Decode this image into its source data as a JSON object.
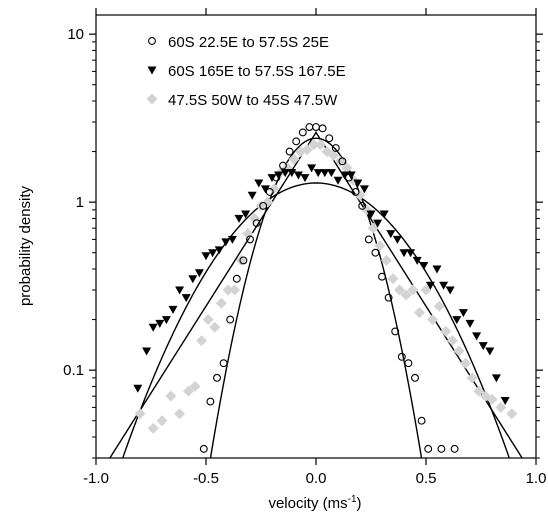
{
  "chart_data": {
    "type": "scatter",
    "title": "",
    "xlabel": "velocity (ms",
    "xlabel_sup": "-1",
    "xlabel_close": ")",
    "ylabel": "probability density",
    "xlim": [
      -1.0,
      1.0
    ],
    "ylim": [
      0.03,
      13
    ],
    "yscale": "log",
    "grid": false,
    "legend_position": "top-left",
    "xticks": [
      {
        "value": -1.0,
        "label": "-1.0"
      },
      {
        "value": -0.5,
        "label": "-0.5"
      },
      {
        "value": 0.0,
        "label": "0.0"
      },
      {
        "value": 0.5,
        "label": "0.5"
      },
      {
        "value": 1.0,
        "label": "1.0"
      }
    ],
    "yticks": [
      {
        "value": 0.1,
        "label": "0.1"
      },
      {
        "value": 1,
        "label": "1"
      },
      {
        "value": 10,
        "label": "10"
      }
    ],
    "series": [
      {
        "name": "60S 22.5E to 57.5S 25E",
        "marker": "circle",
        "color": "#000000",
        "x": [
          -0.51,
          -0.48,
          -0.45,
          -0.42,
          -0.39,
          -0.36,
          -0.33,
          -0.3,
          -0.27,
          -0.24,
          -0.21,
          -0.18,
          -0.15,
          -0.12,
          -0.09,
          -0.06,
          -0.03,
          0.0,
          0.03,
          0.06,
          0.09,
          0.12,
          0.15,
          0.18,
          0.21,
          0.24,
          0.27,
          0.3,
          0.33,
          0.36,
          0.39,
          0.42,
          0.45,
          0.48,
          0.51,
          0.57,
          0.63
        ],
        "y": [
          0.034,
          0.065,
          0.09,
          0.11,
          0.2,
          0.35,
          0.45,
          0.6,
          0.75,
          0.95,
          1.15,
          1.4,
          1.65,
          2.0,
          2.3,
          2.6,
          2.8,
          2.8,
          2.75,
          2.4,
          2.1,
          1.75,
          1.4,
          1.15,
          0.95,
          0.6,
          0.5,
          0.36,
          0.27,
          0.17,
          0.12,
          0.11,
          0.09,
          0.05,
          0.034,
          0.034,
          0.034
        ]
      },
      {
        "name": "60S 165E to 57.5S 167.5E",
        "marker": "triangle-down",
        "color": "#000000",
        "x": [
          -0.81,
          -0.77,
          -0.74,
          -0.71,
          -0.68,
          -0.65,
          -0.62,
          -0.59,
          -0.56,
          -0.53,
          -0.5,
          -0.47,
          -0.44,
          -0.41,
          -0.38,
          -0.35,
          -0.32,
          -0.29,
          -0.26,
          -0.23,
          -0.2,
          -0.17,
          -0.14,
          -0.11,
          -0.08,
          -0.05,
          -0.02,
          0.01,
          0.04,
          0.07,
          0.1,
          0.13,
          0.16,
          0.19,
          0.22,
          0.25,
          0.28,
          0.31,
          0.34,
          0.37,
          0.4,
          0.43,
          0.46,
          0.49,
          0.52,
          0.55,
          0.58,
          0.61,
          0.64,
          0.67,
          0.7,
          0.73,
          0.76,
          0.79,
          0.82,
          0.86
        ],
        "y": [
          0.078,
          0.13,
          0.18,
          0.19,
          0.2,
          0.23,
          0.3,
          0.27,
          0.35,
          0.38,
          0.48,
          0.5,
          0.52,
          0.58,
          0.6,
          0.8,
          0.85,
          1.1,
          1.3,
          1.2,
          1.4,
          1.45,
          1.5,
          1.5,
          1.45,
          1.4,
          1.6,
          1.5,
          1.5,
          1.5,
          1.35,
          1.45,
          1.45,
          1.3,
          1.2,
          0.85,
          0.75,
          0.85,
          0.65,
          0.6,
          0.5,
          0.5,
          0.45,
          0.42,
          0.32,
          0.4,
          0.32,
          0.3,
          0.2,
          0.22,
          0.19,
          0.16,
          0.14,
          0.13,
          0.09,
          0.066
        ]
      },
      {
        "name": "47.5S 50W to 45S 47.5W",
        "marker": "diamond",
        "color": "#d3d3d3",
        "x": [
          -0.8,
          -0.74,
          -0.7,
          -0.66,
          -0.62,
          -0.58,
          -0.55,
          -0.52,
          -0.49,
          -0.46,
          -0.43,
          -0.4,
          -0.37,
          -0.34,
          -0.31,
          -0.28,
          -0.25,
          -0.22,
          -0.19,
          -0.16,
          -0.13,
          -0.1,
          -0.07,
          -0.04,
          -0.01,
          0.02,
          0.05,
          0.08,
          0.11,
          0.14,
          0.17,
          0.2,
          0.23,
          0.26,
          0.29,
          0.32,
          0.35,
          0.38,
          0.41,
          0.44,
          0.47,
          0.5,
          0.53,
          0.56,
          0.59,
          0.62,
          0.65,
          0.68,
          0.71,
          0.74,
          0.77,
          0.8,
          0.84,
          0.89
        ],
        "y": [
          0.055,
          0.045,
          0.05,
          0.07,
          0.055,
          0.075,
          0.08,
          0.15,
          0.2,
          0.18,
          0.25,
          0.3,
          0.3,
          0.45,
          0.65,
          0.8,
          0.95,
          1.0,
          1.2,
          1.5,
          1.6,
          1.8,
          2.0,
          2.05,
          2.2,
          2.2,
          2.0,
          1.9,
          1.75,
          1.6,
          1.35,
          1.1,
          0.9,
          0.7,
          0.55,
          0.45,
          0.35,
          0.3,
          0.28,
          0.3,
          0.22,
          0.3,
          0.2,
          0.24,
          0.17,
          0.15,
          0.13,
          0.11,
          0.09,
          0.075,
          0.07,
          0.067,
          0.06,
          0.055
        ]
      }
    ],
    "fit_curves": [
      {
        "shape": "gaussian",
        "peak": 2.4,
        "sigma": 0.162
      },
      {
        "shape": "gaussian",
        "peak": 1.3,
        "sigma": 0.32
      },
      {
        "shape": "exponential",
        "peak": 2.6,
        "scale": 0.21
      }
    ]
  }
}
